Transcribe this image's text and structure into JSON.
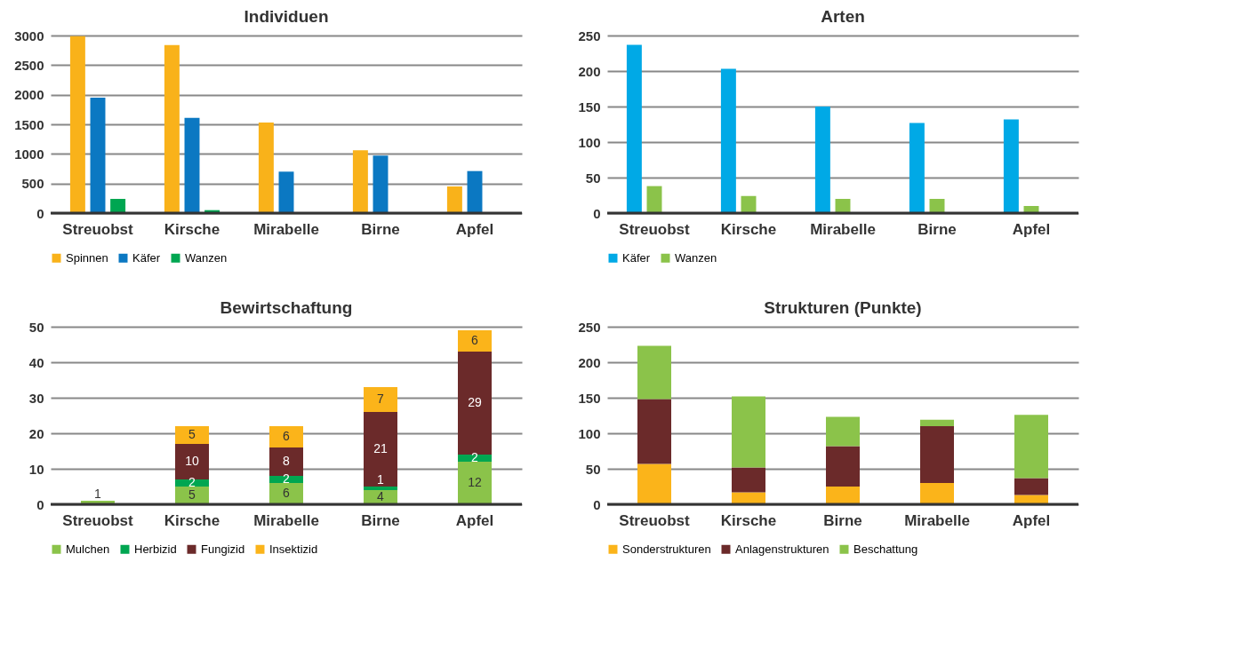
{
  "chart_data": [
    {
      "type": "bar",
      "title": "Individuen",
      "categories": [
        "Streuobst",
        "Kirsche",
        "Mirabelle",
        "Birne",
        "Apfel"
      ],
      "ylim": [
        0,
        3000
      ],
      "yticks": [
        0,
        500,
        1000,
        1500,
        2000,
        2500,
        3000
      ],
      "grid": "y",
      "legend": "bottom",
      "series": [
        {
          "name": "Spinnen",
          "color": "#f9b21a",
          "values": [
            2990,
            2840,
            1530,
            1060,
            450
          ]
        },
        {
          "name": "Käfer",
          "color": "#0b78c2",
          "values": [
            1950,
            1610,
            700,
            970,
            710
          ]
        },
        {
          "name": "Wanzen",
          "color": "#00a651",
          "values": [
            240,
            50,
            10,
            null,
            0
          ]
        }
      ]
    },
    {
      "type": "bar",
      "title": "Arten",
      "categories": [
        "Streuobst",
        "Kirsche",
        "Mirabelle",
        "Birne",
        "Apfel"
      ],
      "ylim": [
        0,
        250
      ],
      "yticks": [
        0,
        50,
        100,
        150,
        200,
        250
      ],
      "grid": "y",
      "legend": "bottom",
      "series": [
        {
          "name": "Käfer",
          "color": "#00a9e6",
          "values": [
            237,
            203,
            150,
            127,
            132
          ]
        },
        {
          "name": "Wanzen",
          "color": "#8bc34a",
          "values": [
            38,
            24,
            20,
            20,
            10
          ]
        }
      ]
    },
    {
      "type": "bar",
      "title": "Bewirtschaftung",
      "stacked": true,
      "data_labels": true,
      "categories": [
        "Streuobst",
        "Kirsche",
        "Mirabelle",
        "Birne",
        "Apfel"
      ],
      "ylim": [
        0,
        50
      ],
      "yticks": [
        0,
        10,
        20,
        30,
        40,
        50
      ],
      "grid": "y",
      "legend": "bottom",
      "series": [
        {
          "name": "Mulchen",
          "color": "#8bc34a",
          "values": [
            1,
            5,
            6,
            4,
            12
          ]
        },
        {
          "name": "Herbizid",
          "color": "#00a651",
          "values": [
            null,
            2,
            2,
            1,
            2
          ]
        },
        {
          "name": "Fungizid",
          "color": "#6b2a2a",
          "values": [
            null,
            10,
            8,
            21,
            29
          ]
        },
        {
          "name": "Insektizid",
          "color": "#fbb41a",
          "values": [
            null,
            5,
            6,
            7,
            6
          ]
        }
      ]
    },
    {
      "type": "bar",
      "title": "Strukturen (Punkte)",
      "stacked": true,
      "categories": [
        "Streuobst",
        "Kirsche",
        "Birne",
        "Mirabelle",
        "Apfel"
      ],
      "ylim": [
        0,
        250
      ],
      "yticks": [
        0,
        50,
        100,
        150,
        200,
        250
      ],
      "grid": "y",
      "legend": "bottom",
      "series": [
        {
          "name": "Sonderstrukturen",
          "color": "#fbb41a",
          "values": [
            57,
            17,
            25,
            30,
            13
          ]
        },
        {
          "name": "Anlagenstrukturen",
          "color": "#6b2a2a",
          "values": [
            91,
            35,
            57,
            80,
            24
          ]
        },
        {
          "name": "Beschattung",
          "color": "#8bc34a",
          "values": [
            75,
            100,
            41,
            9,
            89
          ]
        }
      ]
    }
  ]
}
